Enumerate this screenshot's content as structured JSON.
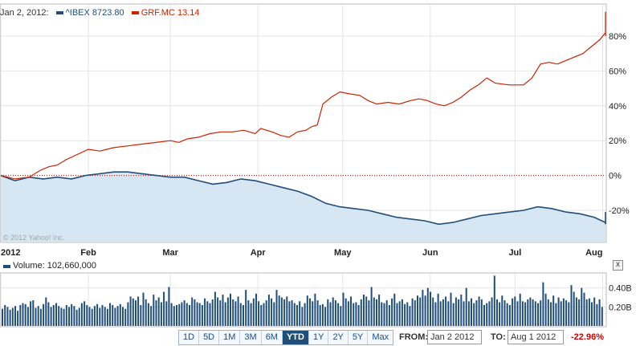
{
  "legend": {
    "date": "Jan 2, 2012:",
    "series_a_label": "^IBEX 8723.80",
    "series_b_label": "GRF.MC 13.14"
  },
  "copyright": "© 2012 Yahoo! Inc.",
  "volume": {
    "label": "Volume: 102,660,000",
    "close_label": "x",
    "ticks": [
      "0.40B",
      "0.20B"
    ]
  },
  "range_buttons": [
    {
      "label": "1D",
      "active": false
    },
    {
      "label": "5D",
      "active": false
    },
    {
      "label": "1M",
      "active": false
    },
    {
      "label": "3M",
      "active": false
    },
    {
      "label": "6M",
      "active": false
    },
    {
      "label": "YTD",
      "active": true
    },
    {
      "label": "1Y",
      "active": false
    },
    {
      "label": "2Y",
      "active": false
    },
    {
      "label": "5Y",
      "active": false
    },
    {
      "label": "Max",
      "active": false
    }
  ],
  "from_label": "FROM:",
  "from_value": "Jan 2 2012",
  "to_label": "TO:",
  "to_value": "Aug 1 2012",
  "change": "-22.96%",
  "colors": {
    "ibex": "#1f4e79",
    "grf": "#cc2200",
    "area": "#d6e6f2",
    "zero": "#cc0000",
    "grid": "#e4e4e4"
  },
  "chart_data": {
    "type": "line",
    "x_tick_labels": [
      "2012",
      "Feb",
      "Mar",
      "Apr",
      "May",
      "Jun",
      "Jul",
      "Aug"
    ],
    "x_ticks_day": [
      0,
      31,
      60,
      91,
      121,
      152,
      182,
      213
    ],
    "y_tick_labels": [
      "80%",
      "60%",
      "40%",
      "20%",
      "0%",
      "-20%"
    ],
    "y_ticks": [
      80,
      60,
      40,
      20,
      0,
      -20
    ],
    "ylim": [
      -38,
      98
    ],
    "xlim_day": [
      0,
      214
    ],
    "series": [
      {
        "name": "GRF.MC",
        "points": [
          [
            0,
            0
          ],
          [
            5,
            -2
          ],
          [
            10,
            -1
          ],
          [
            14,
            3
          ],
          [
            17,
            5
          ],
          [
            20,
            6
          ],
          [
            23,
            9
          ],
          [
            27,
            12
          ],
          [
            31,
            15
          ],
          [
            35,
            14
          ],
          [
            40,
            16
          ],
          [
            45,
            17
          ],
          [
            50,
            18
          ],
          [
            55,
            19
          ],
          [
            60,
            20
          ],
          [
            63,
            19
          ],
          [
            66,
            21
          ],
          [
            70,
            22
          ],
          [
            74,
            24
          ],
          [
            78,
            25
          ],
          [
            82,
            25
          ],
          [
            86,
            26
          ],
          [
            90,
            24
          ],
          [
            92,
            27
          ],
          [
            96,
            25
          ],
          [
            99,
            23
          ],
          [
            102,
            22
          ],
          [
            105,
            25
          ],
          [
            108,
            26
          ],
          [
            110,
            28
          ],
          [
            112,
            29
          ],
          [
            114,
            41
          ],
          [
            117,
            45
          ],
          [
            120,
            48
          ],
          [
            123,
            47
          ],
          [
            127,
            46
          ],
          [
            130,
            43
          ],
          [
            133,
            41
          ],
          [
            137,
            42
          ],
          [
            141,
            41
          ],
          [
            145,
            43
          ],
          [
            148,
            44
          ],
          [
            151,
            43
          ],
          [
            154,
            41
          ],
          [
            157,
            40
          ],
          [
            160,
            42
          ],
          [
            163,
            45
          ],
          [
            166,
            49
          ],
          [
            169,
            52
          ],
          [
            172,
            56
          ],
          [
            175,
            53
          ],
          [
            180,
            52
          ],
          [
            185,
            52
          ],
          [
            188,
            56
          ],
          [
            191,
            64
          ],
          [
            194,
            65
          ],
          [
            197,
            64
          ],
          [
            200,
            66
          ],
          [
            203,
            68
          ],
          [
            206,
            70
          ],
          [
            209,
            74
          ],
          [
            212,
            78
          ],
          [
            214,
            82
          ],
          [
            216,
            88
          ],
          [
            218,
            94
          ],
          [
            220,
            80
          ]
        ]
      },
      {
        "name": "^IBEX",
        "points": [
          [
            0,
            0
          ],
          [
            5,
            -3
          ],
          [
            10,
            -1
          ],
          [
            15,
            -2
          ],
          [
            20,
            -1
          ],
          [
            25,
            -2
          ],
          [
            30,
            0
          ],
          [
            35,
            1
          ],
          [
            40,
            2
          ],
          [
            45,
            2
          ],
          [
            50,
            1
          ],
          [
            55,
            0
          ],
          [
            60,
            -1
          ],
          [
            65,
            -1
          ],
          [
            70,
            -3
          ],
          [
            75,
            -5
          ],
          [
            80,
            -4
          ],
          [
            85,
            -2
          ],
          [
            90,
            -3
          ],
          [
            95,
            -5
          ],
          [
            100,
            -7
          ],
          [
            105,
            -9
          ],
          [
            110,
            -12
          ],
          [
            115,
            -16
          ],
          [
            120,
            -18
          ],
          [
            125,
            -19
          ],
          [
            130,
            -20
          ],
          [
            135,
            -22
          ],
          [
            140,
            -24
          ],
          [
            145,
            -25
          ],
          [
            150,
            -26
          ],
          [
            155,
            -28
          ],
          [
            160,
            -27
          ],
          [
            165,
            -25
          ],
          [
            170,
            -23
          ],
          [
            175,
            -22
          ],
          [
            180,
            -21
          ],
          [
            185,
            -20
          ],
          [
            190,
            -18
          ],
          [
            195,
            -19
          ],
          [
            200,
            -21
          ],
          [
            205,
            -22
          ],
          [
            210,
            -24
          ],
          [
            214,
            -27
          ],
          [
            217,
            -28
          ],
          [
            219,
            -24
          ],
          [
            221,
            -21
          ],
          [
            223,
            -22
          ]
        ]
      }
    ],
    "volume_ticks": [
      0.4,
      0.2
    ],
    "volume_ylim": [
      0,
      0.55
    ],
    "volume_billions": [
      0.18,
      0.22,
      0.2,
      0.17,
      0.19,
      0.21,
      0.16,
      0.22,
      0.24,
      0.23,
      0.2,
      0.26,
      0.27,
      0.19,
      0.21,
      0.18,
      0.23,
      0.3,
      0.25,
      0.2,
      0.22,
      0.24,
      0.21,
      0.19,
      0.18,
      0.22,
      0.2,
      0.23,
      0.21,
      0.17,
      0.19,
      0.24,
      0.26,
      0.22,
      0.2,
      0.18,
      0.21,
      0.23,
      0.19,
      0.22,
      0.2,
      0.18,
      0.24,
      0.22,
      0.19,
      0.21,
      0.23,
      0.2,
      0.18,
      0.25,
      0.31,
      0.29,
      0.27,
      0.31,
      0.22,
      0.35,
      0.28,
      0.24,
      0.21,
      0.33,
      0.27,
      0.3,
      0.25,
      0.36,
      0.26,
      0.41,
      0.24,
      0.21,
      0.22,
      0.23,
      0.25,
      0.27,
      0.24,
      0.22,
      0.3,
      0.28,
      0.25,
      0.24,
      0.22,
      0.29,
      0.26,
      0.24,
      0.28,
      0.36,
      0.3,
      0.27,
      0.33,
      0.25,
      0.3,
      0.34,
      0.28,
      0.26,
      0.31,
      0.24,
      0.22,
      0.38,
      0.27,
      0.24,
      0.29,
      0.34,
      0.26,
      0.22,
      0.24,
      0.27,
      0.33,
      0.29,
      0.25,
      0.38,
      0.32,
      0.3,
      0.28,
      0.31,
      0.26,
      0.27,
      0.24,
      0.22,
      0.26,
      0.2,
      0.24,
      0.32,
      0.29,
      0.26,
      0.34,
      0.27,
      0.22,
      0.23,
      0.2,
      0.28,
      0.25,
      0.3,
      0.27,
      0.24,
      0.21,
      0.35,
      0.29,
      0.26,
      0.31,
      0.24,
      0.25,
      0.22,
      0.28,
      0.33,
      0.31,
      0.27,
      0.41,
      0.3,
      0.28,
      0.33,
      0.25,
      0.24,
      0.27,
      0.22,
      0.29,
      0.34,
      0.24,
      0.26,
      0.28,
      0.23,
      0.25,
      0.21,
      0.29,
      0.27,
      0.32,
      0.3,
      0.38,
      0.32,
      0.4,
      0.36,
      0.3,
      0.25,
      0.34,
      0.26,
      0.28,
      0.31,
      0.26,
      0.35,
      0.24,
      0.3,
      0.28,
      0.33,
      0.26,
      0.4,
      0.26,
      0.29,
      0.24,
      0.27,
      0.31,
      0.28,
      0.22,
      0.24,
      0.26,
      0.3,
      0.53,
      0.28,
      0.25,
      0.32,
      0.27,
      0.24,
      0.22,
      0.29,
      0.31,
      0.26,
      0.34,
      0.26,
      0.25,
      0.28,
      0.3,
      0.28,
      0.26,
      0.24,
      0.27,
      0.46,
      0.34,
      0.28,
      0.25,
      0.32,
      0.24,
      0.3,
      0.26,
      0.29,
      0.27,
      0.25,
      0.43,
      0.36,
      0.3,
      0.28,
      0.4,
      0.35,
      0.28,
      0.29,
      0.25,
      0.3,
      0.23,
      0.28,
      0.2
    ]
  }
}
